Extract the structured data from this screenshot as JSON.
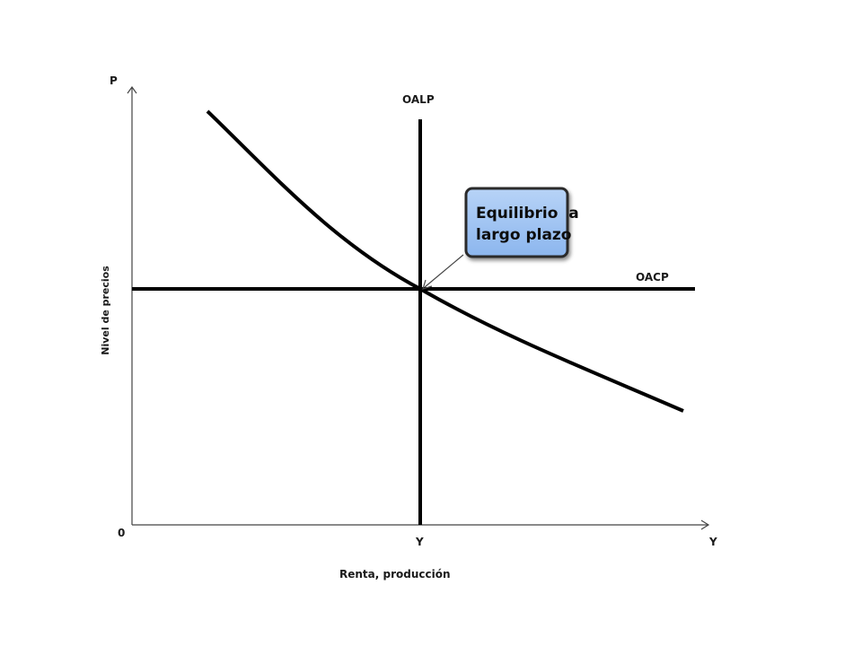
{
  "axes": {
    "y_axis_letter": "P",
    "x_axis_letter": "Y",
    "origin": "0",
    "y_title": "Nivel de precios",
    "x_title": "Renta, producción",
    "equilibrium_tick": "Y"
  },
  "curves": {
    "long_run_supply": "OALP",
    "short_run_supply": "OACP"
  },
  "callout": {
    "line1": "Equilibrio  a",
    "line2": "largo plazo",
    "fill_color": "#9ec3f2",
    "border_color": "#2b2b2b"
  },
  "colors": {
    "line": "#000000",
    "text": "#1a1a1a"
  }
}
